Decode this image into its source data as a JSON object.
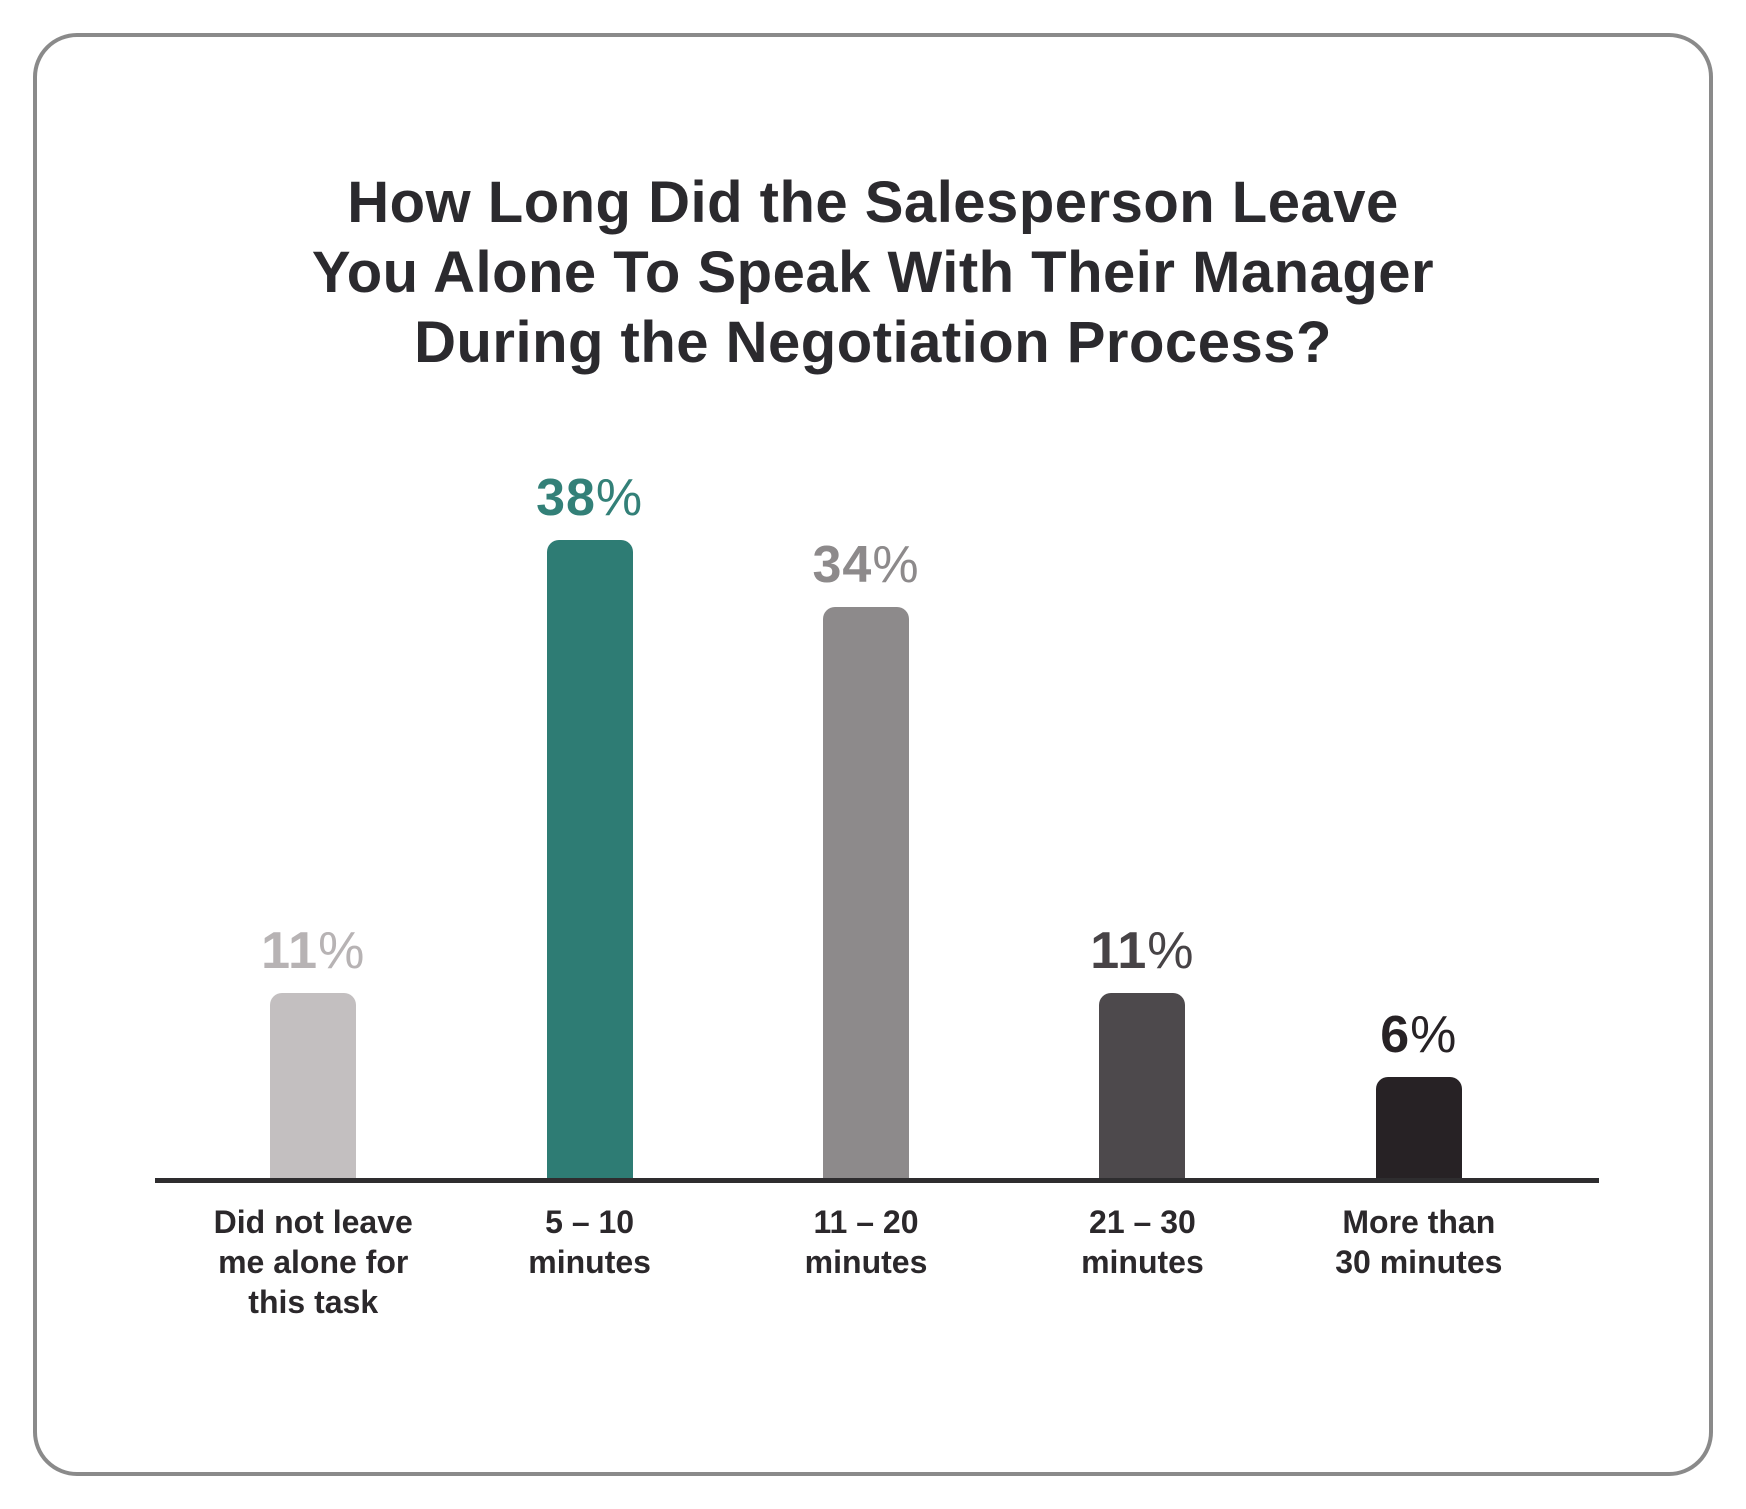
{
  "chart_data": {
    "type": "bar",
    "title": "How Long Did the Salesperson Leave\nYou Alone To Speak With Their Manager\nDuring the Negotiation Process?",
    "categories": [
      "Did not leave\nme alone for\nthis task",
      "5 – 10\nminutes",
      "11 – 20\nminutes",
      "21 – 30\nminutes",
      "More than\n30 minutes"
    ],
    "values": [
      11,
      38,
      34,
      11,
      6
    ],
    "value_suffix": "%",
    "value_labels": [
      "11%",
      "38%",
      "34%",
      "11%",
      "6%"
    ],
    "bar_colors": [
      "#c3bfc0",
      "#2e7c74",
      "#8d8a8b",
      "#4d494c",
      "#272225"
    ],
    "label_colors": [
      "#b7b3b4",
      "#338078",
      "#8d8a8b",
      "#474346",
      "#272225"
    ],
    "ylim": [
      0,
      40
    ],
    "xlabel": "",
    "ylabel": "",
    "grid": false,
    "legend": false,
    "orientation": "vertical"
  },
  "style": {
    "accent_teal": "#2e7c74",
    "card_border_color": "#8a8a8a",
    "axis_color": "#2e2d2f",
    "title_color": "#2b2a2e",
    "background": "#ffffff"
  }
}
